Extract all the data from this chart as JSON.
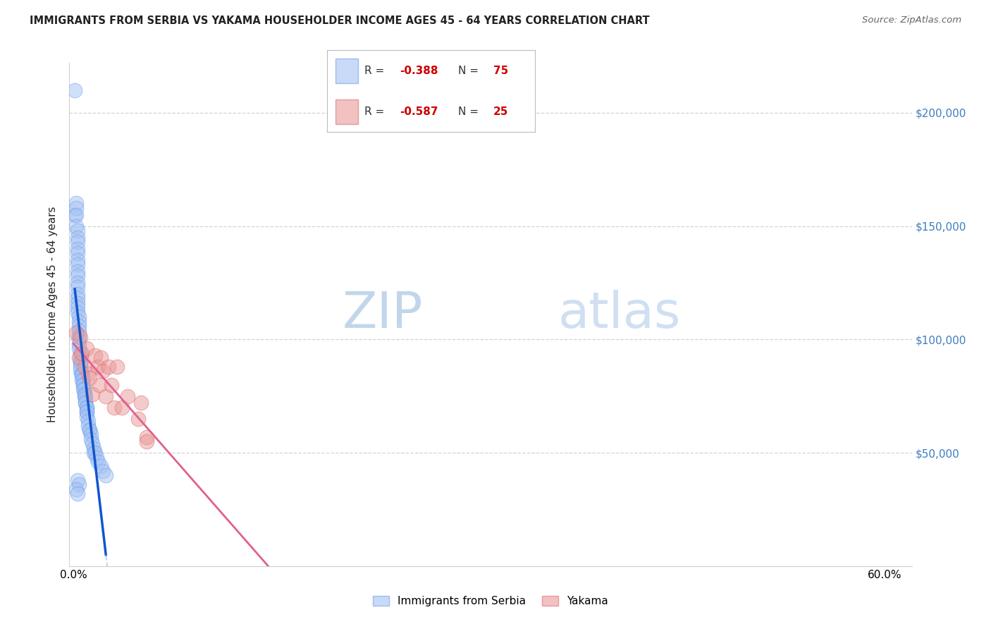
{
  "title": "IMMIGRANTS FROM SERBIA VS YAKAMA HOUSEHOLDER INCOME AGES 45 - 64 YEARS CORRELATION CHART",
  "source": "Source: ZipAtlas.com",
  "ylabel": "Householder Income Ages 45 - 64 years",
  "legend_1_label": "Immigrants from Serbia",
  "legend_2_label": "Yakama",
  "serbia_color": "#a4c2f4",
  "serbia_edge_color": "#6d9eeb",
  "yakama_color": "#ea9999",
  "yakama_edge_color": "#e06c6c",
  "serbia_line_color": "#1155cc",
  "yakama_line_color": "#e06090",
  "serbia_scatter_x": [
    0.001,
    0.001,
    0.002,
    0.002,
    0.002,
    0.002,
    0.003,
    0.003,
    0.003,
    0.003,
    0.003,
    0.003,
    0.003,
    0.003,
    0.003,
    0.003,
    0.003,
    0.003,
    0.003,
    0.003,
    0.003,
    0.003,
    0.004,
    0.004,
    0.004,
    0.004,
    0.004,
    0.004,
    0.004,
    0.004,
    0.005,
    0.005,
    0.005,
    0.005,
    0.005,
    0.005,
    0.006,
    0.006,
    0.006,
    0.006,
    0.007,
    0.007,
    0.007,
    0.007,
    0.008,
    0.008,
    0.008,
    0.008,
    0.009,
    0.009,
    0.009,
    0.01,
    0.01,
    0.01,
    0.01,
    0.01,
    0.011,
    0.011,
    0.012,
    0.012,
    0.013,
    0.013,
    0.014,
    0.015,
    0.015,
    0.016,
    0.017,
    0.018,
    0.02,
    0.022,
    0.024,
    0.003,
    0.004,
    0.002,
    0.003
  ],
  "serbia_scatter_y": [
    210000,
    155000,
    160000,
    158000,
    155000,
    150000,
    148000,
    145000,
    143000,
    140000,
    138000,
    135000,
    133000,
    130000,
    128000,
    125000,
    123000,
    120000,
    118000,
    116000,
    114000,
    112000,
    110000,
    108000,
    106000,
    104000,
    102000,
    100000,
    98000,
    96000,
    94000,
    92000,
    90000,
    90000,
    88000,
    86000,
    85000,
    85000,
    84000,
    82000,
    82000,
    80000,
    80000,
    78000,
    78000,
    76000,
    76000,
    75000,
    74000,
    72000,
    72000,
    70000,
    70000,
    68000,
    68000,
    66000,
    64000,
    62000,
    60000,
    60000,
    58000,
    56000,
    54000,
    52000,
    50000,
    50000,
    48000,
    46000,
    44000,
    42000,
    40000,
    38000,
    36000,
    34000,
    32000
  ],
  "yakama_scatter_x": [
    0.002,
    0.004,
    0.005,
    0.006,
    0.008,
    0.01,
    0.011,
    0.012,
    0.014,
    0.016,
    0.018,
    0.019,
    0.02,
    0.022,
    0.024,
    0.026,
    0.028,
    0.03,
    0.032,
    0.036,
    0.04,
    0.048,
    0.05,
    0.054,
    0.054
  ],
  "yakama_scatter_y": [
    103000,
    92000,
    101000,
    94000,
    88000,
    96000,
    85000,
    83000,
    76000,
    93000,
    88000,
    80000,
    92000,
    86000,
    75000,
    88000,
    80000,
    70000,
    88000,
    70000,
    75000,
    65000,
    72000,
    57000,
    55000
  ],
  "xlim_min": -0.003,
  "xlim_max": 0.62,
  "ylim_min": 0,
  "ylim_max": 222000,
  "right_ytick_values": [
    50000,
    100000,
    150000,
    200000
  ],
  "right_ytick_labels": [
    "$50,000",
    "$100,000",
    "$150,000",
    "$200,000"
  ],
  "xtick_positions": [
    0.0,
    0.1,
    0.2,
    0.3,
    0.4,
    0.5,
    0.6
  ],
  "grid_color": "#d0d0d0",
  "bg_color": "#ffffff",
  "text_color": "#222222",
  "right_label_color": "#3d7dbf",
  "watermark_zip_color": "#c5d8f0",
  "watermark_atlas_color": "#aac4e8"
}
